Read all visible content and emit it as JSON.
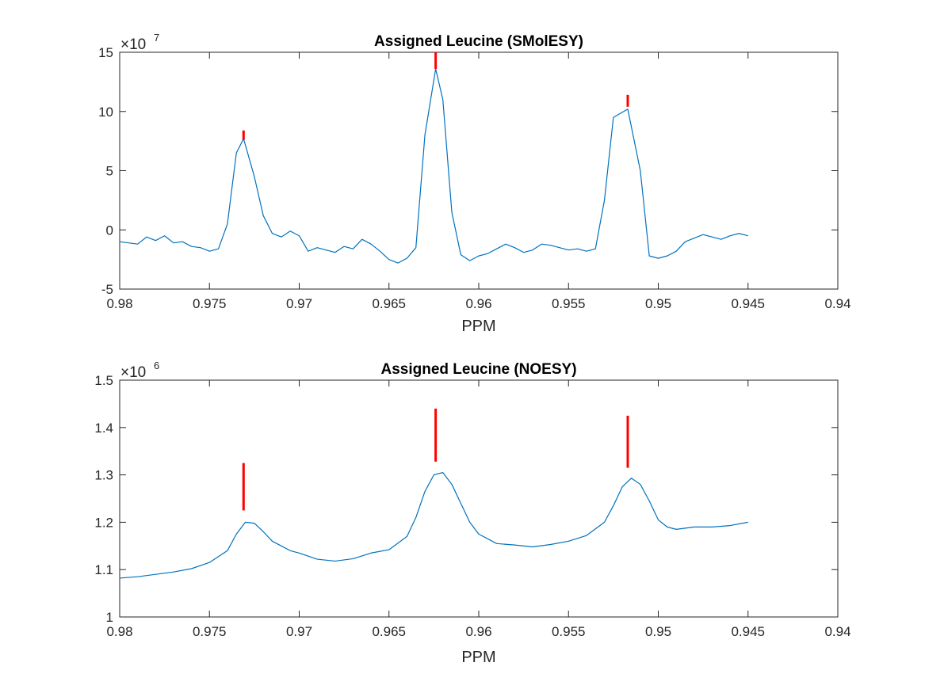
{
  "chart_data": [
    {
      "type": "line",
      "title": "Assigned Leucine (SMolESY)",
      "xlabel": "PPM",
      "ylabel": "",
      "x_reversed": true,
      "xlim": [
        0.94,
        0.98
      ],
      "ylim": [
        -5,
        15
      ],
      "y_multiplier_base": "×10",
      "y_multiplier_exp": "7",
      "xticks": [
        "0.98",
        "0.975",
        "0.97",
        "0.965",
        "0.96",
        "0.955",
        "0.95",
        "0.945",
        "0.94"
      ],
      "yticks": [
        "-5",
        "0",
        "5",
        "10",
        "15"
      ],
      "grid": false,
      "series": [
        {
          "color": "#0072BD",
          "x": [
            0.98,
            0.979,
            0.9785,
            0.978,
            0.9775,
            0.977,
            0.9765,
            0.976,
            0.9755,
            0.975,
            0.9745,
            0.974,
            0.9735,
            0.9731,
            0.9725,
            0.972,
            0.9715,
            0.971,
            0.9705,
            0.97,
            0.9695,
            0.969,
            0.9685,
            0.968,
            0.9675,
            0.967,
            0.9665,
            0.966,
            0.9655,
            0.965,
            0.9645,
            0.964,
            0.9635,
            0.963,
            0.9624,
            0.962,
            0.9615,
            0.961,
            0.9605,
            0.96,
            0.9595,
            0.959,
            0.9585,
            0.958,
            0.9575,
            0.957,
            0.9565,
            0.956,
            0.9555,
            0.955,
            0.9545,
            0.954,
            0.9535,
            0.953,
            0.9525,
            0.9517,
            0.951,
            0.9505,
            0.95,
            0.9495,
            0.949,
            0.9485,
            0.948,
            0.9475,
            0.947,
            0.9465,
            0.946,
            0.9455,
            0.945
          ],
          "y": [
            -1.0,
            -1.2,
            -0.6,
            -0.9,
            -0.5,
            -1.1,
            -1.0,
            -1.4,
            -1.5,
            -1.8,
            -1.6,
            0.5,
            6.5,
            7.7,
            4.5,
            1.2,
            -0.3,
            -0.6,
            -0.1,
            -0.5,
            -1.8,
            -1.5,
            -1.7,
            -1.9,
            -1.4,
            -1.6,
            -0.8,
            -1.2,
            -1.8,
            -2.5,
            -2.8,
            -2.4,
            -1.5,
            8.0,
            13.6,
            11.0,
            1.5,
            -2.1,
            -2.6,
            -2.2,
            -2.0,
            -1.6,
            -1.2,
            -1.5,
            -1.9,
            -1.7,
            -1.2,
            -1.3,
            -1.5,
            -1.7,
            -1.6,
            -1.8,
            -1.6,
            2.5,
            9.5,
            10.2,
            5.0,
            -2.2,
            -2.4,
            -2.2,
            -1.8,
            -1.0,
            -0.7,
            -0.4,
            -0.6,
            -0.8,
            -0.5,
            -0.3,
            -0.5
          ]
        }
      ],
      "markers": [
        {
          "x": 0.9731,
          "y0": 7.6,
          "y1": 8.4
        },
        {
          "x": 0.9624,
          "y0": 13.6,
          "y1": 15.0
        },
        {
          "x": 0.9517,
          "y0": 10.4,
          "y1": 11.4
        }
      ]
    },
    {
      "type": "line",
      "title": "Assigned Leucine (NOESY)",
      "xlabel": "PPM",
      "ylabel": "",
      "x_reversed": true,
      "xlim": [
        0.94,
        0.98
      ],
      "ylim": [
        1.0,
        1.5
      ],
      "y_multiplier_base": "×10",
      "y_multiplier_exp": "6",
      "xticks": [
        "0.98",
        "0.975",
        "0.97",
        "0.965",
        "0.96",
        "0.955",
        "0.95",
        "0.945",
        "0.94"
      ],
      "yticks": [
        "1",
        "1.1",
        "1.2",
        "1.3",
        "1.4",
        "1.5"
      ],
      "grid": false,
      "series": [
        {
          "color": "#0072BD",
          "x": [
            0.98,
            0.979,
            0.978,
            0.977,
            0.976,
            0.975,
            0.974,
            0.9735,
            0.973,
            0.9725,
            0.972,
            0.9715,
            0.971,
            0.9705,
            0.97,
            0.969,
            0.968,
            0.967,
            0.966,
            0.965,
            0.964,
            0.9635,
            0.963,
            0.9625,
            0.962,
            0.9615,
            0.961,
            0.9605,
            0.96,
            0.959,
            0.958,
            0.957,
            0.956,
            0.955,
            0.954,
            0.953,
            0.9525,
            0.952,
            0.9515,
            0.951,
            0.9505,
            0.95,
            0.9495,
            0.949,
            0.948,
            0.947,
            0.946,
            0.945
          ],
          "y": [
            1.082,
            1.085,
            1.09,
            1.095,
            1.102,
            1.115,
            1.14,
            1.175,
            1.2,
            1.198,
            1.18,
            1.16,
            1.15,
            1.14,
            1.135,
            1.122,
            1.118,
            1.123,
            1.135,
            1.142,
            1.17,
            1.21,
            1.265,
            1.3,
            1.305,
            1.28,
            1.24,
            1.2,
            1.175,
            1.155,
            1.152,
            1.148,
            1.153,
            1.16,
            1.172,
            1.2,
            1.235,
            1.275,
            1.293,
            1.28,
            1.245,
            1.205,
            1.19,
            1.185,
            1.19,
            1.19,
            1.193,
            1.2
          ]
        }
      ],
      "markers": [
        {
          "x": 0.9731,
          "y0": 1.225,
          "y1": 1.325
        },
        {
          "x": 0.9624,
          "y0": 1.328,
          "y1": 1.44
        },
        {
          "x": 0.9517,
          "y0": 1.315,
          "y1": 1.425
        }
      ]
    }
  ]
}
